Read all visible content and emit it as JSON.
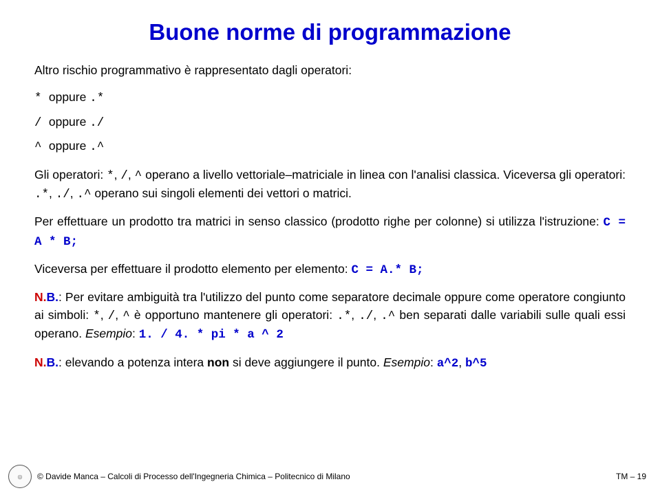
{
  "title": "Buone norme di programmazione",
  "intro": "Altro rischio programmativo è rappresentato dagli operatori:",
  "ops": [
    {
      "sym": "*",
      "mid": " oppure ",
      "dot": ".*"
    },
    {
      "sym": "/",
      "mid": " oppure ",
      "dot": "./"
    },
    {
      "sym": "^",
      "mid": " oppure ",
      "dot": ".^"
    }
  ],
  "para1a": "Gli operatori: ",
  "para1_ops": "*",
  "para1_c1": ", ",
  "para1_op2": "/",
  "para1_c2": ", ",
  "para1_op3": "^",
  "para1b": " operano a livello vettoriale–matriciale in linea con l'analisi classica. Viceversa gli operatori: ",
  "para1_d1": ".*",
  "para1_dc1": ", ",
  "para1_d2": "./",
  "para1_dc2": ", ",
  "para1_d3": ".^",
  "para1c": " operano sui singoli elementi dei vettori o matrici.",
  "para2a": "Per effettuare un prodotto tra matrici in senso classico (prodotto righe per colonne) si utilizza l'istruzione: ",
  "para2_code": "C = A * B;",
  "para3a": "Viceversa per effettuare il prodotto elemento per elemento: ",
  "para3_code": "C = A.* B;",
  "nb1_n": "N.",
  "nb1_b": "B.",
  "nb1a": ": Per evitare ambiguità tra l'utilizzo del punto come separatore decimale oppure come operatore congiunto ai simboli: ",
  "nb1_s1": "*",
  "nb1_c1": ", ",
  "nb1_s2": "/",
  "nb1_c2": ", ",
  "nb1_s3": "^",
  "nb1b": " è opportuno mantenere gli operatori: ",
  "nb1_d1": ".*",
  "nb1_dc1": ", ",
  "nb1_d2": "./",
  "nb1_dc2": ", ",
  "nb1_d3": ".^",
  "nb1c": " ben separati dalle variabili sulle quali essi operano. ",
  "nb1_es": "Esempio",
  "nb1_col": ": ",
  "nb1_code": "1. / 4. * pi * a ^ 2",
  "nb2_n": "N.",
  "nb2_b": "B.",
  "nb2a": ": elevando a potenza intera ",
  "nb2_non": "non",
  "nb2b": " si deve aggiungere il punto. ",
  "nb2_es": "Esempio",
  "nb2_col": ": ",
  "nb2_code1": "a^2",
  "nb2_cc": ", ",
  "nb2_code2": "b^5",
  "footer_left": "© Davide Manca – Calcoli di Processo dell'Ingegneria Chimica – Politecnico di Milano",
  "footer_right": "TM – 19"
}
